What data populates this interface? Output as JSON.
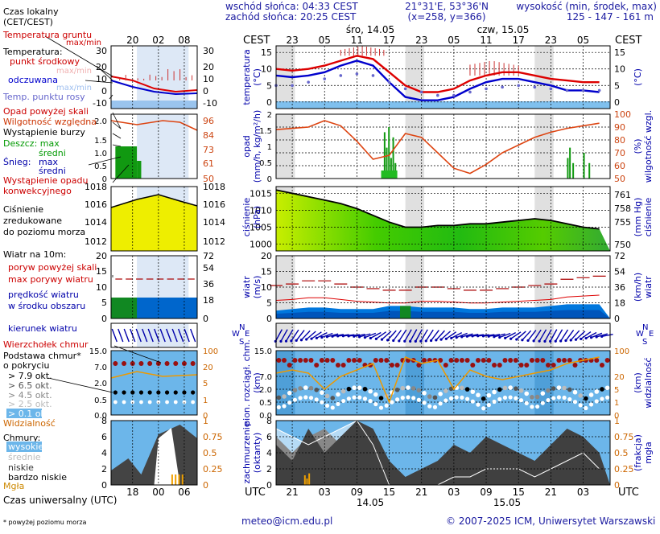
{
  "header": {
    "sunrise": "wschód słońca: 04:33 CEST",
    "sunset": "zachód słońca: 20:25 CEST",
    "coords": "21°31'E, 53°36'N",
    "grid": "(x=258, y=366)",
    "elev_title": "wysokość (min, środek, max)",
    "elev_values": "125 - 147 - 161 m",
    "day1": "śro, 14.05",
    "day2": "czw, 15.05"
  },
  "legend": {
    "local_time": [
      "Czas lokalny",
      "(CET/CEST)"
    ],
    "ground_temp": "Temperatura gruntu",
    "max_min": "max/min",
    "temperature": "Temperatura:",
    "mid_point": "punkt środkowy",
    "max_min2": "max/min",
    "felt": "odczuwana",
    "max_min3": "max/min",
    "dew_point": "Temp. punktu rosy",
    "precip_above": "Opad powyżej skali",
    "humidity": "Wilgotność względna",
    "storm": "Wystąpienie burzy",
    "rain": "Deszcz: max",
    "rain_mid": "średni",
    "snow": "Śnieg:",
    "snow_max": "max",
    "snow_mid": "średni",
    "conv": [
      "Wystąpienie opadu",
      "konwekcyjnego"
    ],
    "pressure": [
      "Ciśnienie",
      "zredukowane",
      "do poziomu morza"
    ],
    "wind_title": "Wiatr na 10m:",
    "gust_above": "poryw powyżej skali",
    "gust_max": "max porywy wiatru",
    "wind_avg": [
      "prędkość wiatru",
      "w środku obszaru"
    ],
    "wind_dir": "kierunek wiatru",
    "cumulus": "Wierzchołek chmur",
    "cloud_base": [
      "Podstawa chmur*",
      "o pokryciu"
    ],
    "okta": [
      "> 7.9 okt.",
      "> 6.5 okt.",
      "> 4.5 okt.",
      "> 2.5 okt.",
      "> 0.1 okt."
    ],
    "visibility": "Widzialność",
    "clouds_title": "Chmury:",
    "clouds": [
      "wysokie",
      "średnie",
      "niskie",
      "bardzo niskie"
    ],
    "fog": "Mgła",
    "utc": "Czas uniwersalny (UTC)",
    "note": "* powyżej poziomu morza"
  },
  "axes": {
    "cest": "CEST",
    "utc": "UTC",
    "panel_labels": [
      "temperatura",
      "(°C)",
      "opad",
      "(mm/h, kg/m²/h)",
      "ciśnienie",
      "(hPa)",
      "wiatr",
      "(m/s)",
      "pion. rozciągł. chm.",
      "(km)",
      "zachmurzenie",
      "(oktanty)"
    ],
    "right_labels": [
      "(°C)",
      "(%)",
      "wilgotność wzgl.",
      "(mm Hg)",
      "ciśnienie",
      "(km/h)",
      "wiatr",
      "(km)",
      "widzialność",
      "(frakcja)",
      "mgła"
    ],
    "compass": [
      "N",
      "W",
      "E",
      "S"
    ],
    "cest_ticks": [
      "23",
      "05",
      "11",
      "17",
      "23",
      "05",
      "11",
      "17",
      "23",
      "05"
    ],
    "utc_ticks": [
      "21",
      "03",
      "09",
      "15",
      "21",
      "03",
      "09",
      "15",
      "21",
      "03"
    ],
    "legend_cest_ticks": [
      "20",
      "02",
      "08"
    ],
    "legend_utc_ticks": [
      "18",
      "00",
      "06"
    ],
    "utc_days": [
      "14.05",
      "15.05"
    ]
  },
  "footer": {
    "email": "meteo@icm.edu.pl",
    "copyright": "© 2007-2025 ICM, Uniwersytet Warszawski"
  },
  "chart_data": [
    {
      "type": "line",
      "title": "temperatura",
      "ylabel": "(°C)",
      "ylim": [
        -2,
        17
      ],
      "yticks": [
        0,
        5,
        10,
        15
      ],
      "x_hours_utc": [
        18,
        21,
        24,
        27,
        30,
        33,
        36,
        39,
        42,
        45,
        48,
        51,
        54,
        57,
        60,
        63,
        66,
        69,
        72,
        75,
        78
      ],
      "series": [
        {
          "name": "punkt środkowy",
          "values": [
            10,
            9.5,
            10,
            11,
            12.5,
            14,
            13,
            9,
            5,
            3,
            3,
            4,
            6.5,
            8,
            9,
            9,
            8,
            7,
            6.5,
            6,
            6
          ]
        },
        {
          "name": "odczuwana",
          "values": [
            8,
            7.5,
            8,
            9,
            11,
            12.5,
            11,
            6,
            1.5,
            0.5,
            0.5,
            1.5,
            4,
            6,
            7,
            7,
            6,
            5,
            3.5,
            3.5,
            3
          ]
        },
        {
          "name": "Temp. punktu rosy",
          "values": [
            5,
            5,
            6,
            7,
            8,
            8.5,
            8,
            6,
            4,
            3,
            2,
            2,
            3,
            4,
            4.5,
            5,
            4.5,
            4,
            3.5,
            3.5,
            3.5
          ]
        }
      ]
    },
    {
      "type": "line",
      "title": "wilgotność względna",
      "ylabel": "(%)",
      "ylim": [
        50,
        100
      ],
      "yticks": [
        50,
        60,
        70,
        80,
        90,
        100
      ],
      "x_hours_utc": [
        18,
        21,
        24,
        27,
        30,
        33,
        36,
        39,
        42,
        45,
        48,
        51,
        54,
        57,
        60,
        63,
        66,
        69,
        72,
        75,
        78
      ],
      "values": [
        88,
        89,
        90,
        95,
        91,
        79,
        65,
        68,
        85,
        82,
        70,
        58,
        54,
        61,
        70,
        76,
        82,
        86,
        89,
        91,
        93
      ]
    },
    {
      "type": "area",
      "title": "ciśnienie",
      "ylabel": "(hPa)",
      "ylim": [
        998,
        1017
      ],
      "yticks": [
        1000,
        1005,
        1010,
        1015
      ],
      "x_hours_utc": [
        18,
        21,
        24,
        27,
        30,
        33,
        36,
        39,
        42,
        45,
        48,
        51,
        54,
        57,
        60,
        63,
        66,
        69,
        72,
        75,
        78
      ],
      "values": [
        1016,
        1015,
        1014,
        1013,
        1012,
        1010.5,
        1008.5,
        1006.5,
        1005,
        1005,
        1005.5,
        1005.5,
        1006,
        1006,
        1006.5,
        1007,
        1007.5,
        1007,
        1006,
        1005,
        1004.5
      ]
    },
    {
      "type": "line",
      "title": "wiatr",
      "ylabel": "(m/s)",
      "ylim": [
        0,
        20
      ],
      "yticks": [
        0,
        5,
        10,
        15,
        20
      ],
      "x_hours_utc": [
        18,
        21,
        24,
        27,
        30,
        33,
        36,
        39,
        42,
        45,
        48,
        51,
        54,
        57,
        60,
        63,
        66,
        69,
        72,
        75,
        78
      ],
      "series": [
        {
          "name": "max porywy wiatru",
          "values": [
            10.5,
            11,
            12,
            12,
            11,
            10,
            9.5,
            9,
            9,
            10,
            10,
            9.5,
            9,
            9,
            9.5,
            10,
            10.5,
            11,
            12.5,
            13,
            13.5
          ]
        },
        {
          "name": "prędkość wiatru",
          "values": [
            2.5,
            3,
            3.5,
            3.5,
            3,
            3,
            3,
            4,
            4,
            3.5,
            3.5,
            3.5,
            3,
            3,
            3.5,
            3.5,
            3.5,
            4,
            4.5,
            4.5,
            4.5
          ]
        }
      ]
    },
    {
      "type": "line",
      "title": "pion. rozciągł. chm.",
      "ylabel": "(km)",
      "ylim": [
        0,
        15
      ],
      "yticks": [
        "0.0",
        "0.5",
        "2.0",
        "7.0",
        "15.0"
      ],
      "y2label": "widzialność",
      "y2ticks": [
        "0",
        "1",
        "5",
        "20",
        "100"
      ],
      "x_hours_utc": [
        18,
        21,
        24,
        27,
        30,
        33,
        36,
        39,
        42,
        45,
        48,
        51,
        54,
        57,
        60,
        63,
        66,
        69,
        72,
        75,
        78
      ],
      "values": [
        65,
        70,
        65,
        40,
        60,
        70,
        80,
        20,
        90,
        80,
        85,
        40,
        70,
        60,
        55,
        60,
        65,
        70,
        80,
        85,
        90
      ]
    },
    {
      "type": "area",
      "title": "zachmurzenie",
      "ylabel": "(oktanty)",
      "ylim": [
        0,
        8
      ],
      "yticks": [
        0,
        2,
        4,
        6,
        8
      ],
      "y2label": "mgła",
      "y2ticks": [
        "0",
        "0.25",
        "0.5",
        "0.75",
        "1"
      ],
      "x_hours_utc": [
        18,
        21,
        24,
        27,
        30,
        33,
        36,
        39,
        42,
        45,
        48,
        51,
        54,
        57,
        60,
        63,
        66,
        69,
        72,
        75,
        78
      ],
      "series": [
        {
          "name": "niskie",
          "values": [
            5,
            3,
            7,
            4,
            6,
            8,
            7,
            3,
            1,
            2,
            3,
            5,
            4,
            6,
            5,
            4,
            3,
            5,
            7,
            6,
            4
          ]
        },
        {
          "name": "średnie",
          "values": [
            6,
            4,
            6,
            7,
            5,
            6,
            4,
            1,
            0,
            0,
            1,
            1,
            2,
            3,
            2,
            2,
            2,
            3,
            4,
            5,
            3
          ]
        },
        {
          "name": "wysokie",
          "values": [
            7,
            6,
            5,
            6,
            7,
            8,
            5,
            0,
            0,
            0,
            0,
            1,
            1,
            2,
            2,
            2,
            1,
            2,
            3,
            4,
            2
          ]
        }
      ]
    }
  ]
}
